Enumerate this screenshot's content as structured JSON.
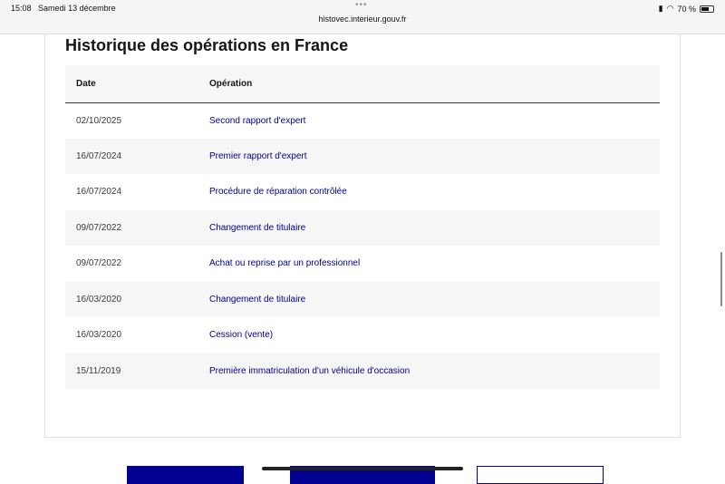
{
  "status": {
    "time": "15:08",
    "date": "Samedi 13 décembre",
    "url": "histovec.interieur.gouv.fr",
    "battery": "70 %",
    "battery_level": 70
  },
  "section": {
    "title": "Historique des opérations en France",
    "columns": [
      "Date",
      "Opération"
    ],
    "rows": [
      {
        "date": "02/10/2025",
        "operation": "Second rapport d'expert"
      },
      {
        "date": "16/07/2024",
        "operation": "Premier rapport d'expert"
      },
      {
        "date": "16/07/2024",
        "operation": "Procédure de réparation contrôlée"
      },
      {
        "date": "09/07/2022",
        "operation": "Changement de titulaire"
      },
      {
        "date": "09/07/2022",
        "operation": "Achat ou reprise par un professionnel"
      },
      {
        "date": "16/03/2020",
        "operation": "Changement de titulaire"
      },
      {
        "date": "16/03/2020",
        "operation": "Cession (vente)"
      },
      {
        "date": "15/11/2019",
        "operation": "Première immatriculation d'un véhicule d'occasion"
      }
    ]
  },
  "colors": {
    "link": "#000091",
    "accent": "#000091"
  }
}
